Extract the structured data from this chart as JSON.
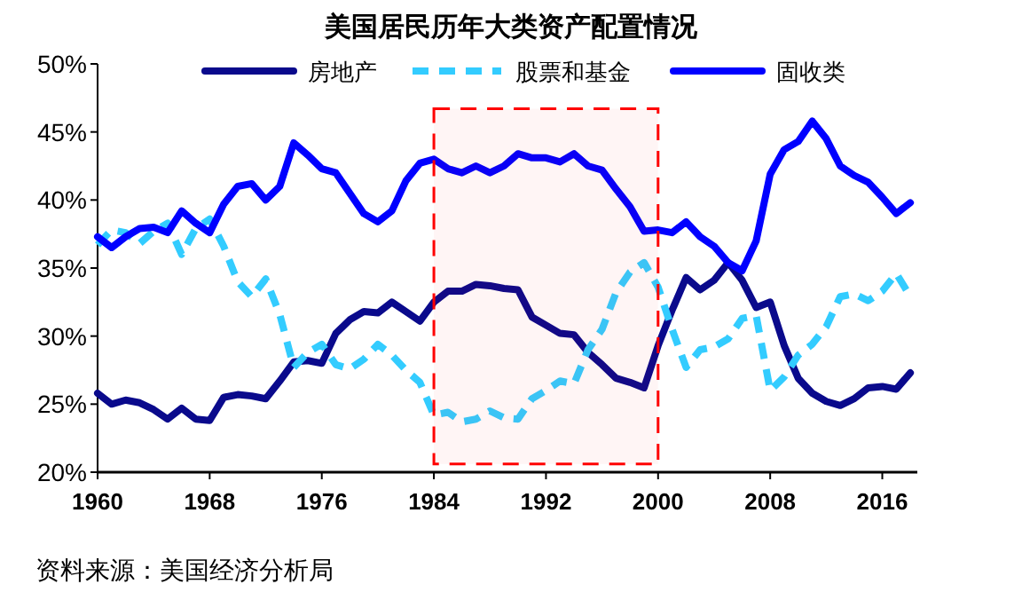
{
  "chart_data": {
    "type": "line",
    "title": "美国居民历年大类资产配置情况",
    "x": [
      1960,
      1961,
      1962,
      1963,
      1964,
      1965,
      1966,
      1967,
      1968,
      1969,
      1970,
      1971,
      1972,
      1973,
      1974,
      1975,
      1976,
      1977,
      1978,
      1979,
      1980,
      1981,
      1982,
      1983,
      1984,
      1985,
      1986,
      1987,
      1988,
      1989,
      1990,
      1991,
      1992,
      1993,
      1994,
      1995,
      1996,
      1997,
      1998,
      1999,
      2000,
      2001,
      2002,
      2003,
      2004,
      2005,
      2006,
      2007,
      2008,
      2009,
      2010,
      2011,
      2012,
      2013,
      2014,
      2015,
      2016,
      2017,
      2018
    ],
    "series": [
      {
        "name": "房地产",
        "color": "#0a0a8c",
        "line_style": "solid",
        "values": [
          25.8,
          25.0,
          25.3,
          25.1,
          24.6,
          23.9,
          24.7,
          23.9,
          23.8,
          25.5,
          25.7,
          25.6,
          25.4,
          26.7,
          28.1,
          28.2,
          28.0,
          30.2,
          31.2,
          31.8,
          31.7,
          32.5,
          31.8,
          31.1,
          32.5,
          33.3,
          33.3,
          33.8,
          33.7,
          33.5,
          33.4,
          31.4,
          30.8,
          30.2,
          30.1,
          28.8,
          27.9,
          26.9,
          26.6,
          26.2,
          29.3,
          31.9,
          34.3,
          33.4,
          34.1,
          35.4,
          34.1,
          32.1,
          32.5,
          29.3,
          26.9,
          25.8,
          25.2,
          24.9,
          25.4,
          26.2,
          26.3,
          26.1,
          27.3
        ]
      },
      {
        "name": "股票和基金",
        "color": "#33ccff",
        "line_style": "dashed",
        "values": [
          36.7,
          37.8,
          37.6,
          36.8,
          37.7,
          38.3,
          36.0,
          37.9,
          38.6,
          36.6,
          34.0,
          32.9,
          34.2,
          31.6,
          27.7,
          28.8,
          29.4,
          27.9,
          27.6,
          28.3,
          29.4,
          28.6,
          27.5,
          26.6,
          24.2,
          24.4,
          23.7,
          23.9,
          24.5,
          24.0,
          23.9,
          25.4,
          26.0,
          26.7,
          26.5,
          29.0,
          30.5,
          33.2,
          34.7,
          35.4,
          33.6,
          30.5,
          27.7,
          29.0,
          29.2,
          29.8,
          31.3,
          31.5,
          26.0,
          27.0,
          28.6,
          29.4,
          30.7,
          32.9,
          33.1,
          32.6,
          33.3,
          34.6,
          32.9
        ]
      },
      {
        "name": "固收类",
        "color": "#0000ff",
        "line_style": "solid",
        "values": [
          37.3,
          36.5,
          37.3,
          37.9,
          38.0,
          37.6,
          39.2,
          38.3,
          37.6,
          39.7,
          41.0,
          41.2,
          40.0,
          41.0,
          44.2,
          43.3,
          42.3,
          42.0,
          40.5,
          39.0,
          38.4,
          39.2,
          41.4,
          42.7,
          43.0,
          42.3,
          42.0,
          42.5,
          42.0,
          42.5,
          43.4,
          43.1,
          43.1,
          42.8,
          43.4,
          42.5,
          42.2,
          40.8,
          39.5,
          37.7,
          37.8,
          37.6,
          38.4,
          37.3,
          36.6,
          35.4,
          34.8,
          37.0,
          41.9,
          43.7,
          44.3,
          45.8,
          44.5,
          42.5,
          41.8,
          41.3,
          40.2,
          39.0,
          39.8
        ]
      }
    ],
    "xlim": [
      1960,
      2018.5
    ],
    "xticks": [
      1960,
      1968,
      1976,
      1984,
      1992,
      2000,
      2008,
      2016
    ],
    "ylim": [
      20,
      50
    ],
    "yticks": [
      {
        "value": 20,
        "label": "20%"
      },
      {
        "value": 25,
        "label": "25%"
      },
      {
        "value": 30,
        "label": "30%"
      },
      {
        "value": 35,
        "label": "35%"
      },
      {
        "value": 40,
        "label": "40%"
      },
      {
        "value": 45,
        "label": "45%"
      },
      {
        "value": 50,
        "label": "50%"
      }
    ],
    "bands": [
      {
        "axis": "x",
        "from": 1984,
        "to": 2000,
        "color": "#ff0000"
      }
    ],
    "legend": "top",
    "grid": false,
    "marker": "none",
    "annotations": [
      "资料来源：美国经济分析局"
    ]
  }
}
